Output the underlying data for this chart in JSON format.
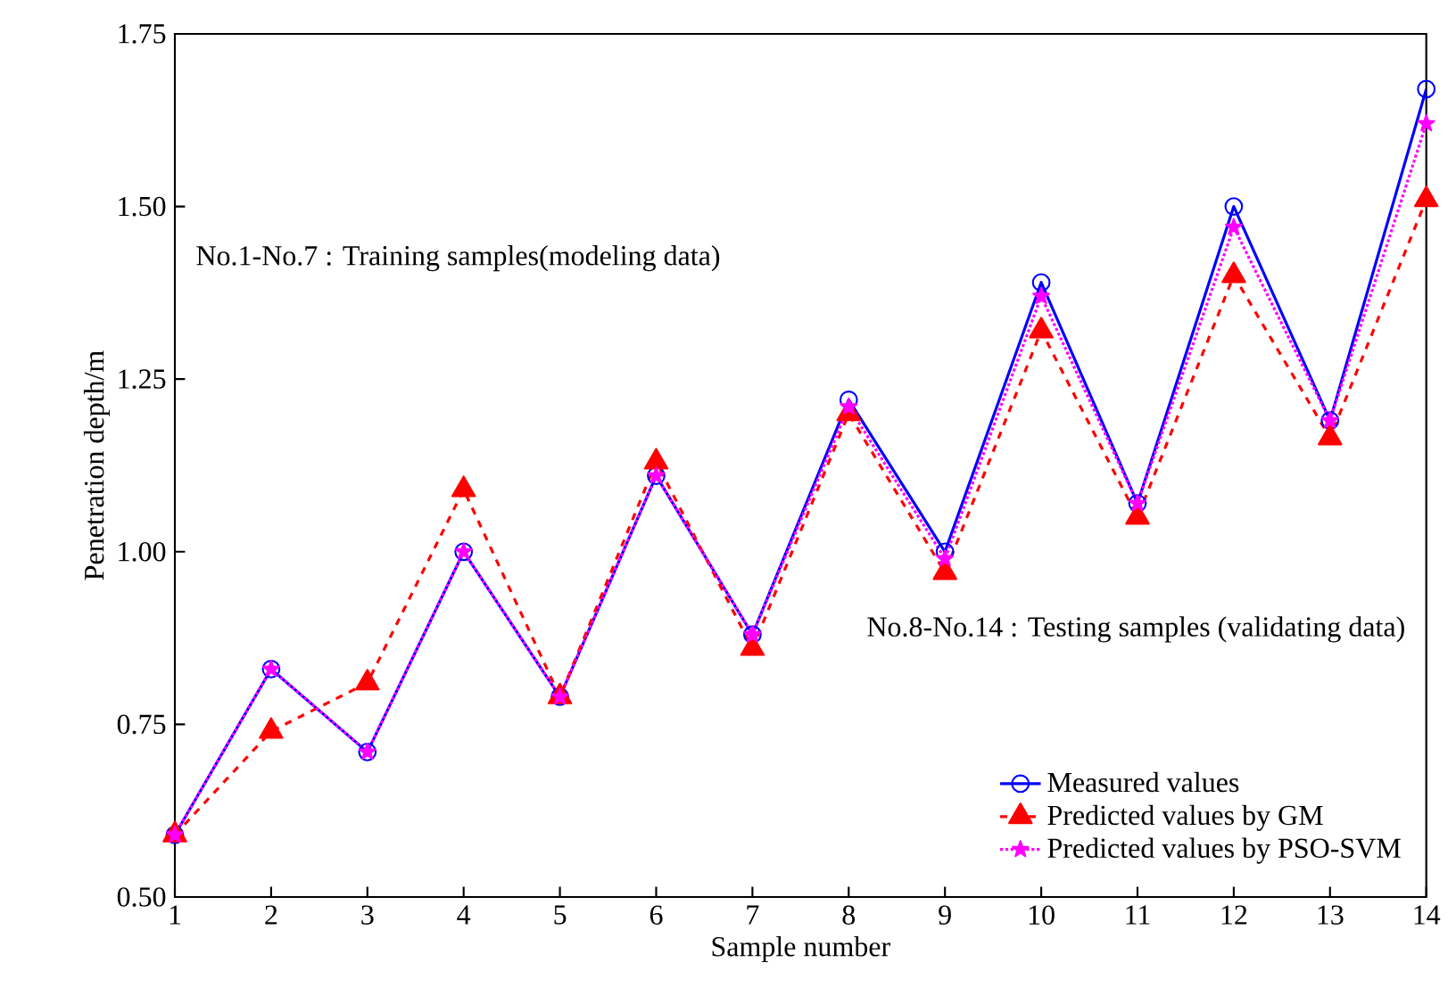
{
  "chart_data": {
    "type": "line",
    "xlabel": "Sample number",
    "ylabel": "Penetration depth/m",
    "x": [
      1,
      2,
      3,
      4,
      5,
      6,
      7,
      8,
      9,
      10,
      11,
      12,
      13,
      14
    ],
    "xlim": [
      1,
      14
    ],
    "xticks": [
      1,
      2,
      3,
      4,
      5,
      6,
      7,
      8,
      9,
      10,
      11,
      12,
      13,
      14
    ],
    "ylim": [
      0.5,
      1.75
    ],
    "yticks": [
      {
        "value": 0.5,
        "label": "0.50"
      },
      {
        "value": 0.75,
        "label": "0.75"
      },
      {
        "value": 1.0,
        "label": "1.00"
      },
      {
        "value": 1.25,
        "label": "1.25"
      },
      {
        "value": 1.5,
        "label": "1.50"
      },
      {
        "value": 1.75,
        "label": "1.75"
      }
    ],
    "series": [
      {
        "name": "Measured values",
        "color": "#0000ff",
        "marker": "circle",
        "line_style": "solid",
        "values": [
          0.59,
          0.83,
          0.71,
          1.0,
          0.79,
          1.11,
          0.88,
          1.22,
          1.0,
          1.39,
          1.07,
          1.5,
          1.19,
          1.67
        ]
      },
      {
        "name": "Predicted values by GM",
        "color": "#ff0000",
        "marker": "triangle",
        "line_style": "dashed",
        "values": [
          0.59,
          0.74,
          0.81,
          1.09,
          0.79,
          1.13,
          0.86,
          1.2,
          0.97,
          1.32,
          1.05,
          1.4,
          1.165,
          1.51
        ]
      },
      {
        "name": "Predicted values by PSO-SVM",
        "color": "#ff00ff",
        "marker": "star",
        "line_style": "dotted",
        "values": [
          0.59,
          0.83,
          0.71,
          1.0,
          0.79,
          1.11,
          0.88,
          1.21,
          0.99,
          1.37,
          1.07,
          1.47,
          1.19,
          1.62
        ]
      }
    ],
    "annotations": [
      "No.1-No.7 : Training samples(modeling data)",
      "No.8-No.14 : Testing samples (validating data)"
    ],
    "legend": "bottom right",
    "grid": false
  }
}
